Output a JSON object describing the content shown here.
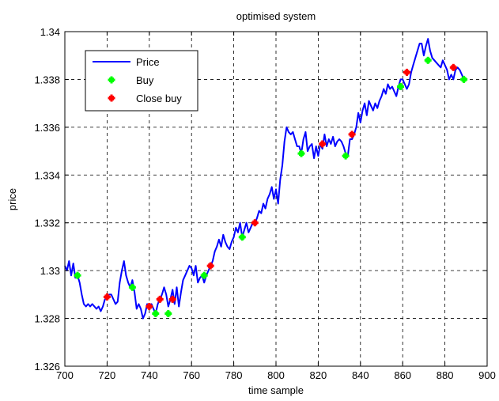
{
  "chart_data": {
    "type": "line",
    "title": "optimised system",
    "xlabel": "time sample",
    "ylabel": "price",
    "xlim": [
      700,
      900
    ],
    "ylim": [
      1.326,
      1.34
    ],
    "xticks": [
      700,
      720,
      740,
      760,
      780,
      800,
      820,
      840,
      860,
      880,
      900
    ],
    "xtick_labels": [
      "700",
      "720",
      "740",
      "760",
      "780",
      "800",
      "820",
      "840",
      "860",
      "880",
      "900"
    ],
    "yticks": [
      1.326,
      1.328,
      1.33,
      1.332,
      1.334,
      1.336,
      1.338,
      1.34
    ],
    "ytick_labels": [
      "1.326",
      "1.328",
      "1.33",
      "1.332",
      "1.334",
      "1.336",
      "1.338",
      "1.34"
    ],
    "grid": true,
    "legend_position": "top-left",
    "colors": {
      "price": "#0000ff",
      "buy": "#00ff00",
      "close_buy": "#ff0000"
    },
    "series": [
      {
        "name": "Price",
        "kind": "line",
        "x": [
          700,
          701,
          702,
          703,
          704,
          705,
          706,
          707,
          708,
          709,
          710,
          711,
          712,
          713,
          714,
          715,
          716,
          717,
          718,
          719,
          720,
          721,
          722,
          723,
          724,
          725,
          726,
          727,
          728,
          729,
          730,
          731,
          732,
          733,
          734,
          735,
          736,
          737,
          738,
          739,
          740,
          741,
          742,
          743,
          744,
          745,
          746,
          747,
          748,
          749,
          750,
          751,
          752,
          753,
          754,
          755,
          756,
          757,
          758,
          759,
          760,
          761,
          762,
          763,
          764,
          765,
          766,
          767,
          768,
          769,
          770,
          771,
          772,
          773,
          774,
          775,
          776,
          777,
          778,
          779,
          780,
          781,
          782,
          783,
          784,
          785,
          786,
          787,
          788,
          789,
          790,
          791,
          792,
          793,
          794,
          795,
          796,
          797,
          798,
          799,
          800,
          801,
          802,
          803,
          804,
          805,
          806,
          807,
          808,
          809,
          810,
          811,
          812,
          813,
          814,
          815,
          816,
          817,
          818,
          819,
          820,
          821,
          822,
          823,
          824,
          825,
          826,
          827,
          828,
          829,
          830,
          831,
          832,
          833,
          834,
          835,
          836,
          837,
          838,
          839,
          840,
          841,
          842,
          843,
          844,
          845,
          846,
          847,
          848,
          849,
          850,
          851,
          852,
          853,
          854,
          855,
          856,
          857,
          858,
          859,
          860,
          861,
          862,
          863,
          864,
          865,
          866,
          867,
          868,
          869,
          870,
          871,
          872,
          873,
          874,
          875,
          876,
          877,
          878,
          879,
          880,
          881,
          882,
          883,
          884,
          885,
          886,
          887,
          888,
          889
        ],
        "y": [
          1.3302,
          1.33,
          1.3304,
          1.3298,
          1.3303,
          1.3297,
          1.3298,
          1.3295,
          1.329,
          1.3286,
          1.3285,
          1.3286,
          1.3285,
          1.3286,
          1.3285,
          1.3284,
          1.3285,
          1.3283,
          1.3285,
          1.3288,
          1.3289,
          1.329,
          1.329,
          1.3288,
          1.3286,
          1.3287,
          1.3295,
          1.33,
          1.3304,
          1.3298,
          1.3295,
          1.3293,
          1.3296,
          1.3291,
          1.3284,
          1.3286,
          1.3284,
          1.328,
          1.3282,
          1.3286,
          1.3285,
          1.3286,
          1.3284,
          1.3282,
          1.3286,
          1.3288,
          1.329,
          1.3293,
          1.329,
          1.3285,
          1.3288,
          1.3292,
          1.3286,
          1.3293,
          1.3285,
          1.3291,
          1.3296,
          1.3298,
          1.33,
          1.3302,
          1.3301,
          1.3298,
          1.3302,
          1.3295,
          1.3297,
          1.3298,
          1.3295,
          1.3298,
          1.33,
          1.3302,
          1.3304,
          1.3308,
          1.331,
          1.3313,
          1.331,
          1.3315,
          1.3312,
          1.331,
          1.3309,
          1.3312,
          1.3314,
          1.3318,
          1.3316,
          1.332,
          1.3314,
          1.3317,
          1.332,
          1.3316,
          1.3318,
          1.332,
          1.332,
          1.3322,
          1.3325,
          1.3324,
          1.3328,
          1.3326,
          1.333,
          1.3332,
          1.3335,
          1.333,
          1.3334,
          1.3328,
          1.3338,
          1.3344,
          1.3354,
          1.336,
          1.3358,
          1.3357,
          1.3358,
          1.3355,
          1.3352,
          1.3352,
          1.3349,
          1.3355,
          1.3358,
          1.335,
          1.3352,
          1.3353,
          1.3347,
          1.3352,
          1.3348,
          1.3353,
          1.3351,
          1.3357,
          1.3352,
          1.3355,
          1.3353,
          1.3356,
          1.3352,
          1.3354,
          1.3355,
          1.3354,
          1.3352,
          1.3349,
          1.3348,
          1.3355,
          1.3355,
          1.3357,
          1.336,
          1.3366,
          1.3362,
          1.3367,
          1.337,
          1.3365,
          1.3371,
          1.3369,
          1.3367,
          1.337,
          1.3368,
          1.3371,
          1.3373,
          1.3376,
          1.3374,
          1.3378,
          1.3376,
          1.3377,
          1.3375,
          1.3373,
          1.3377,
          1.338,
          1.338,
          1.3378,
          1.3376,
          1.3378,
          1.3383,
          1.3386,
          1.3389,
          1.3392,
          1.3395,
          1.3395,
          1.339,
          1.3394,
          1.3397,
          1.3392,
          1.3389,
          1.3388,
          1.3387,
          1.3386,
          1.3385,
          1.3388,
          1.3386,
          1.3384,
          1.338,
          1.3382,
          1.338,
          1.3384,
          1.3385,
          1.3384,
          1.3382,
          1.338
        ]
      },
      {
        "name": "Buy",
        "kind": "markers",
        "x": [
          706,
          732,
          743,
          749,
          766,
          784,
          812,
          833,
          859,
          872,
          889
        ],
        "y": [
          1.3298,
          1.3293,
          1.3282,
          1.3282,
          1.3298,
          1.3314,
          1.3349,
          1.3348,
          1.3377,
          1.3388,
          1.338
        ]
      },
      {
        "name": "Close buy",
        "kind": "markers",
        "x": [
          720,
          740,
          745,
          751,
          769,
          790,
          822,
          836,
          862,
          884
        ],
        "y": [
          1.3289,
          1.3285,
          1.3288,
          1.3288,
          1.3302,
          1.332,
          1.3353,
          1.3357,
          1.3383,
          1.3385
        ]
      }
    ]
  }
}
